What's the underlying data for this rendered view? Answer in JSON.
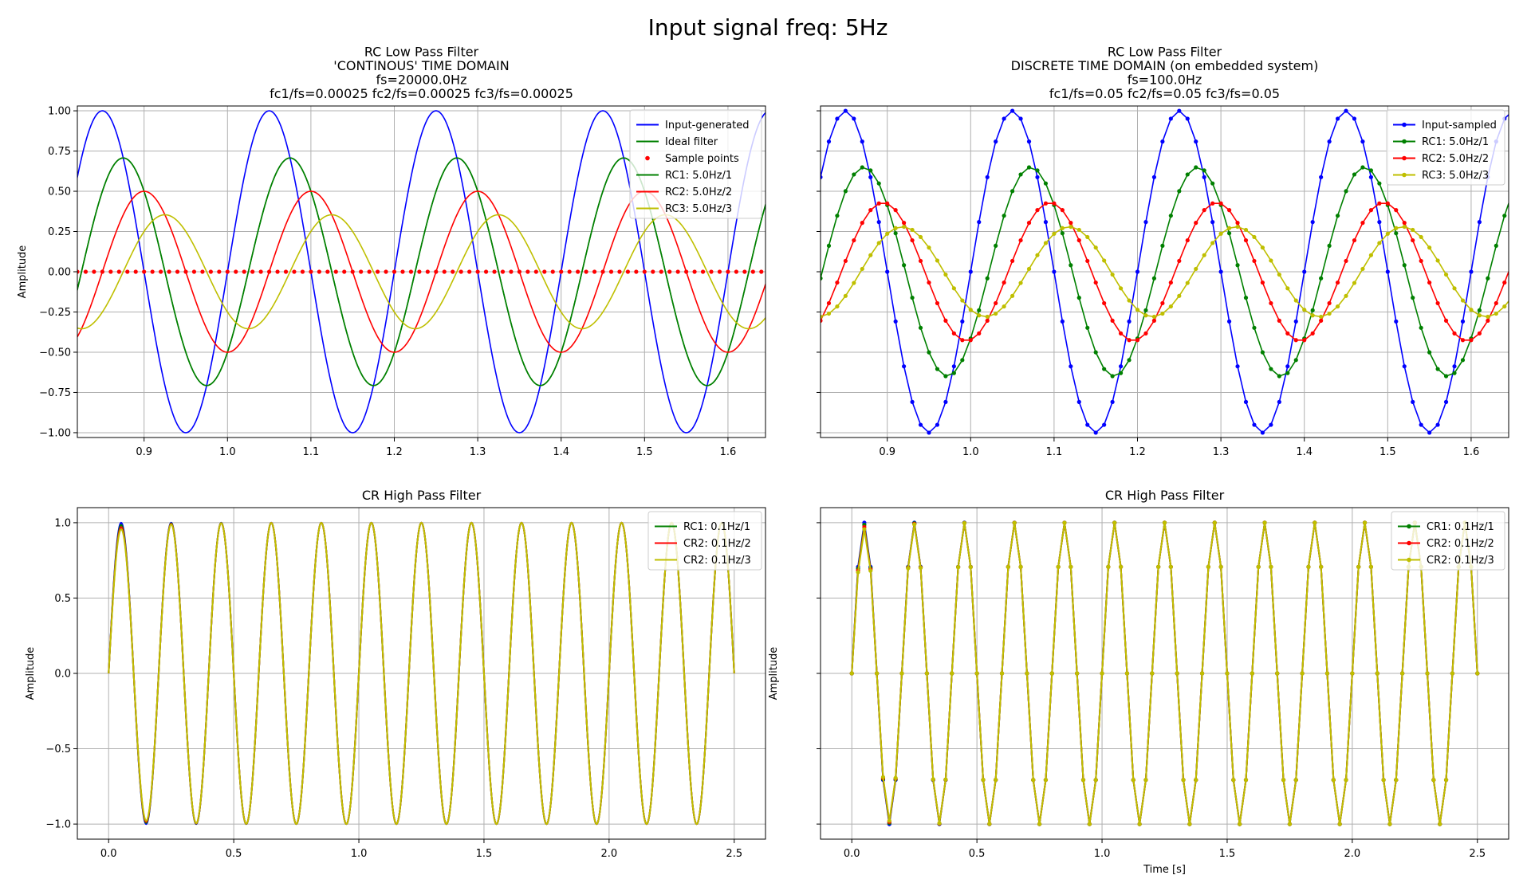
{
  "suptitle": "Input signal freq: 5Hz",
  "colors": {
    "blue": "#0000ff",
    "green": "#008000",
    "red": "#ff0000",
    "yellow": "#bfbf00",
    "grid": "#b0b0b0"
  },
  "chart_data": [
    {
      "id": "lp-cont",
      "type": "line",
      "title_lines": [
        "RC Low Pass Filter",
        "'CONTINOUS' TIME DOMAIN",
        "fs=20000.0Hz",
        "fc1/fs=0.00025 fc2/fs=0.00025 fc3/fs=0.00025"
      ],
      "xlabel": "",
      "ylabel": "Amplitude",
      "xlim": [
        0.82,
        1.645
      ],
      "ylim": [
        -1.03,
        1.03
      ],
      "xticks": [
        0.9,
        1.0,
        1.1,
        1.2,
        1.3,
        1.4,
        1.5,
        1.6
      ],
      "xtick_labels": [
        "0.9",
        "1.0",
        "1.1",
        "1.2",
        "1.3",
        "1.4",
        "1.5",
        "1.6"
      ],
      "yticks": [
        -1.0,
        -0.75,
        -0.5,
        -0.25,
        0.0,
        0.25,
        0.5,
        0.75,
        1.0
      ],
      "ytick_labels": [
        "−1.00",
        "−0.75",
        "−0.50",
        "−0.25",
        "0.00",
        "0.25",
        "0.50",
        "0.75",
        "1.00"
      ],
      "grid": true,
      "legend_position": "top-right",
      "series": [
        {
          "name": "Input-generated",
          "color": "#0000ff",
          "marker": "none",
          "amplitude": 1.0,
          "phase_delay_s": 0.0,
          "frequency_hz": 5
        },
        {
          "name": "Ideal filter",
          "color": "#008000",
          "marker": "none",
          "amplitude": 0.707,
          "phase_delay_s": 0.025,
          "frequency_hz": 5
        },
        {
          "name": "Sample points",
          "color": "#ff0000",
          "marker": "dot",
          "linestyle": "none",
          "constant_value": 0.0,
          "sample_step_s": 0.01
        },
        {
          "name": "RC1: 5.0Hz/1",
          "color": "#008000",
          "marker": "none",
          "amplitude": 0.707,
          "phase_delay_s": 0.025,
          "frequency_hz": 5,
          "in_legend_only_overlaps": true
        },
        {
          "name": "RC2: 5.0Hz/2",
          "color": "#ff0000",
          "marker": "none",
          "amplitude": 0.5,
          "phase_delay_s": 0.05,
          "frequency_hz": 5
        },
        {
          "name": "RC3: 5.0Hz/3",
          "color": "#bfbf00",
          "marker": "none",
          "amplitude": 0.354,
          "phase_delay_s": 0.075,
          "frequency_hz": 5
        }
      ]
    },
    {
      "id": "lp-disc",
      "type": "line",
      "title_lines": [
        "RC Low Pass Filter",
        "DISCRETE TIME DOMAIN (on embedded system)",
        "fs=100.0Hz",
        "fc1/fs=0.05 fc2/fs=0.05 fc3/fs=0.05"
      ],
      "xlabel": "",
      "ylabel": "",
      "xlim": [
        0.82,
        1.645
      ],
      "ylim": [
        -1.03,
        1.03
      ],
      "xticks": [
        0.9,
        1.0,
        1.1,
        1.2,
        1.3,
        1.4,
        1.5,
        1.6
      ],
      "xtick_labels": [
        "0.9",
        "1.0",
        "1.1",
        "1.2",
        "1.3",
        "1.4",
        "1.5",
        "1.6"
      ],
      "yticks": [
        -1.0,
        -0.75,
        -0.5,
        -0.25,
        0.0,
        0.25,
        0.5,
        0.75,
        1.0
      ],
      "ytick_labels": [
        "",
        "",
        "",
        "",
        "",
        "",
        "",
        "",
        ""
      ],
      "grid": true,
      "legend_position": "top-right",
      "sample_step_s": 0.01,
      "series": [
        {
          "name": "Input-sampled",
          "color": "#0000ff",
          "marker": "dot",
          "amplitude": 1.0,
          "phase_delay_s": 0.0,
          "frequency_hz": 5
        },
        {
          "name": "RC1: 5.0Hz/1",
          "color": "#008000",
          "marker": "dot",
          "amplitude": 0.65,
          "phase_delay_s": 0.022,
          "frequency_hz": 5
        },
        {
          "name": "RC2: 5.0Hz/2",
          "color": "#ff0000",
          "marker": "dot",
          "amplitude": 0.43,
          "phase_delay_s": 0.045,
          "frequency_hz": 5
        },
        {
          "name": "RC3: 5.0Hz/3",
          "color": "#bfbf00",
          "marker": "dot",
          "amplitude": 0.28,
          "phase_delay_s": 0.068,
          "frequency_hz": 5
        }
      ]
    },
    {
      "id": "hp-cont",
      "type": "line",
      "title_lines": [
        "CR High Pass Filter"
      ],
      "xlabel": "",
      "ylabel": "Amplitude",
      "xlim": [
        -0.125,
        2.625
      ],
      "ylim": [
        -1.1,
        1.1
      ],
      "xticks": [
        0.0,
        0.5,
        1.0,
        1.5,
        2.0,
        2.5
      ],
      "xtick_labels": [
        "0.0",
        "0.5",
        "1.0",
        "1.5",
        "2.0",
        "2.5"
      ],
      "yticks": [
        -1.0,
        -0.5,
        0.0,
        0.5,
        1.0
      ],
      "ytick_labels": [
        "−1.0",
        "−0.5",
        "0.0",
        "0.5",
        "1.0"
      ],
      "grid": true,
      "legend_position": "top-right",
      "x_range": [
        0.0,
        2.5
      ],
      "series": [
        {
          "name": "",
          "color": "#0000ff",
          "marker": "none",
          "amplitude": 1.0,
          "frequency_hz": 5,
          "transient": 0.0
        },
        {
          "name": "RC1: 0.1Hz/1",
          "color": "#008000",
          "marker": "none",
          "amplitude": 1.0,
          "frequency_hz": 5,
          "transient": 0.02
        },
        {
          "name": "CR2: 0.1Hz/2",
          "color": "#ff0000",
          "marker": "none",
          "amplitude": 1.0,
          "frequency_hz": 5,
          "transient": 0.04
        },
        {
          "name": "CR2: 0.1Hz/3",
          "color": "#bfbf00",
          "marker": "none",
          "amplitude": 1.0,
          "frequency_hz": 5,
          "transient": 0.06
        }
      ]
    },
    {
      "id": "hp-disc",
      "type": "line",
      "title_lines": [
        "CR High Pass Filter"
      ],
      "xlabel": "Time [s]",
      "ylabel": "Amplitude",
      "xlim": [
        -0.125,
        2.625
      ],
      "ylim": [
        -1.1,
        1.1
      ],
      "xticks": [
        0.0,
        0.5,
        1.0,
        1.5,
        2.0,
        2.5
      ],
      "xtick_labels": [
        "0.0",
        "0.5",
        "1.0",
        "1.5",
        "2.0",
        "2.5"
      ],
      "yticks": [
        -1.0,
        -0.5,
        0.0,
        0.5,
        1.0
      ],
      "ytick_labels": [
        "",
        "",
        "",
        "",
        ""
      ],
      "grid": true,
      "legend_position": "top-right",
      "x_range": [
        0.0,
        2.5
      ],
      "sample_step_s": 0.025,
      "series": [
        {
          "name": "",
          "color": "#0000ff",
          "marker": "dot",
          "amplitude": 1.0,
          "frequency_hz": 5,
          "transient": 0.0
        },
        {
          "name": "CR1: 0.1Hz/1",
          "color": "#008000",
          "marker": "dot",
          "amplitude": 1.0,
          "frequency_hz": 5,
          "transient": 0.02
        },
        {
          "name": "CR2: 0.1Hz/2",
          "color": "#ff0000",
          "marker": "dot",
          "amplitude": 1.0,
          "frequency_hz": 5,
          "transient": 0.04
        },
        {
          "name": "CR2: 0.1Hz/3",
          "color": "#bfbf00",
          "marker": "dot",
          "amplitude": 1.0,
          "frequency_hz": 5,
          "transient": 0.06
        }
      ]
    }
  ]
}
